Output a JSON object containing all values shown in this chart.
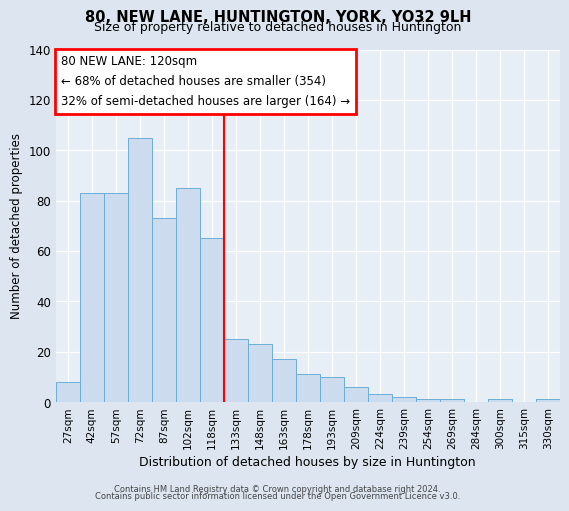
{
  "title": "80, NEW LANE, HUNTINGTON, YORK, YO32 9LH",
  "subtitle": "Size of property relative to detached houses in Huntington",
  "xlabel": "Distribution of detached houses by size in Huntington",
  "ylabel": "Number of detached properties",
  "bar_labels": [
    "27sqm",
    "42sqm",
    "57sqm",
    "72sqm",
    "87sqm",
    "102sqm",
    "118sqm",
    "133sqm",
    "148sqm",
    "163sqm",
    "178sqm",
    "193sqm",
    "209sqm",
    "224sqm",
    "239sqm",
    "254sqm",
    "269sqm",
    "284sqm",
    "300sqm",
    "315sqm",
    "330sqm"
  ],
  "bar_heights": [
    8,
    83,
    83,
    105,
    73,
    85,
    65,
    25,
    23,
    17,
    11,
    10,
    6,
    3,
    2,
    1,
    1,
    0,
    1,
    0,
    1
  ],
  "bar_color": "#ccdcee",
  "bar_edgecolor": "#6aaed6",
  "vline_color": "red",
  "annotation_title": "80 NEW LANE: 120sqm",
  "annotation_line1": "← 68% of detached houses are smaller (354)",
  "annotation_line2": "32% of semi-detached houses are larger (164) →",
  "ylim": [
    0,
    140
  ],
  "yticks": [
    0,
    20,
    40,
    60,
    80,
    100,
    120,
    140
  ],
  "footer1": "Contains HM Land Registry data © Crown copyright and database right 2024.",
  "footer2": "Contains public sector information licensed under the Open Government Licence v3.0.",
  "bg_color": "#dde6f0",
  "plot_bg_color": "#e8eef6"
}
